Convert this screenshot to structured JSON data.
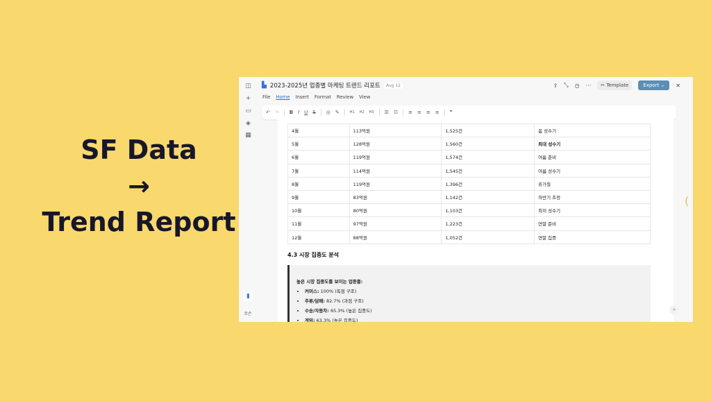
{
  "hero": {
    "line1": "SF Data",
    "arrow": "→",
    "line2": "Trend Report"
  },
  "window": {
    "title": "2023-2025년 업종별 마케팅 트렌드 리포트",
    "date": "Aug 12",
    "template_label": "Template",
    "export_label": "Export ⌄"
  },
  "menu": [
    "File",
    "Home",
    "Insert",
    "Format",
    "Review",
    "View"
  ],
  "sidebar": {
    "bottom_label": "로손"
  },
  "table": [
    [
      "4월",
      "113억원",
      "1,525건",
      "봄 성수기"
    ],
    [
      "5월",
      "128억원",
      "1,560건",
      "최대 성수기"
    ],
    [
      "6월",
      "119억원",
      "1,574건",
      "여름 준비"
    ],
    [
      "7월",
      "114억원",
      "1,545건",
      "여름 성수기"
    ],
    [
      "8월",
      "119억원",
      "1,396건",
      "휴가철"
    ],
    [
      "9월",
      "83억원",
      "1,142건",
      "하반기 조정"
    ],
    [
      "10월",
      "80억원",
      "1,103건",
      "최저 성수기"
    ],
    [
      "11월",
      "97억원",
      "1,223건",
      "연말 준비"
    ],
    [
      "12월",
      "88억원",
      "1,052건",
      "연말 집중"
    ]
  ],
  "section": {
    "heading": "4.3 시장 집중도 분석",
    "quote_title": "높은 시장 집중도를 보이는 업종들:",
    "items": [
      {
        "k": "커머스:",
        "v": " 100% (독점 구조)"
      },
      {
        "k": "주류/담배:",
        "v": " 82.7% (과점 구조)"
      },
      {
        "k": "수송/자동차:",
        "v": " 65.3% (높은 집중도)"
      },
      {
        "k": "게임:",
        "v": " 63.3% (높은 집중도)"
      }
    ]
  }
}
